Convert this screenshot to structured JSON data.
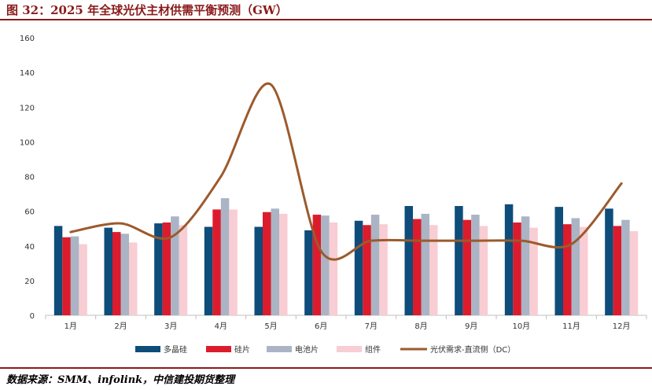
{
  "header": {
    "title": "图 32：2025 年全球光伏主材供需平衡预测（GW）"
  },
  "footer": {
    "source": "数据来源：SMM、infolink，中信建投期货整理"
  },
  "colors": {
    "title_red": "#8b1a1a",
    "polysilicon": "#0e4c7a",
    "wafer": "#dc1c2c",
    "cell": "#aab4c4",
    "module": "#f8cdd3",
    "demand": "#9c5a2c",
    "axis": "#bfbfbf"
  },
  "chart_data": {
    "type": "bar",
    "title": "2025 年全球光伏主材供需平衡预测（GW）",
    "xlabel": "",
    "ylabel": "",
    "ylim": [
      0,
      160
    ],
    "yticks": [
      "0",
      "20",
      "40",
      "60",
      "80",
      "100",
      "120",
      "140",
      "160"
    ],
    "categories": [
      "1月",
      "2月",
      "3月",
      "4月",
      "5月",
      "6月",
      "7月",
      "8月",
      "9月",
      "10月",
      "11月",
      "12月"
    ],
    "series": [
      {
        "name": "多晶硅",
        "type": "bar",
        "color": "#0e4c7a",
        "values": [
          51.5,
          50.5,
          53,
          51,
          51,
          49,
          54.5,
          63,
          63,
          64,
          62.5,
          61.5
        ]
      },
      {
        "name": "硅片",
        "type": "bar",
        "color": "#dc1c2c",
        "values": [
          45,
          48,
          53.5,
          61,
          59.5,
          58,
          52,
          55.5,
          55,
          53.5,
          52.5,
          51.5
        ]
      },
      {
        "name": "电池片",
        "type": "bar",
        "color": "#aab4c4",
        "values": [
          45.5,
          47,
          57,
          67.5,
          61.5,
          57.5,
          58,
          58.5,
          58,
          57,
          56,
          55
        ]
      },
      {
        "name": "组件",
        "type": "bar",
        "color": "#f8cdd3",
        "values": [
          41,
          42,
          52,
          61,
          58.5,
          53.5,
          52.5,
          52,
          51.5,
          50.5,
          51,
          48.5
        ]
      },
      {
        "name": "光伏需求-直流侧（DC）",
        "type": "line",
        "color": "#9c5a2c",
        "values": [
          48,
          53,
          45,
          80,
          133,
          37,
          43,
          43,
          43,
          43,
          41,
          76
        ]
      }
    ],
    "legend": {
      "position": "bottom-center"
    }
  }
}
